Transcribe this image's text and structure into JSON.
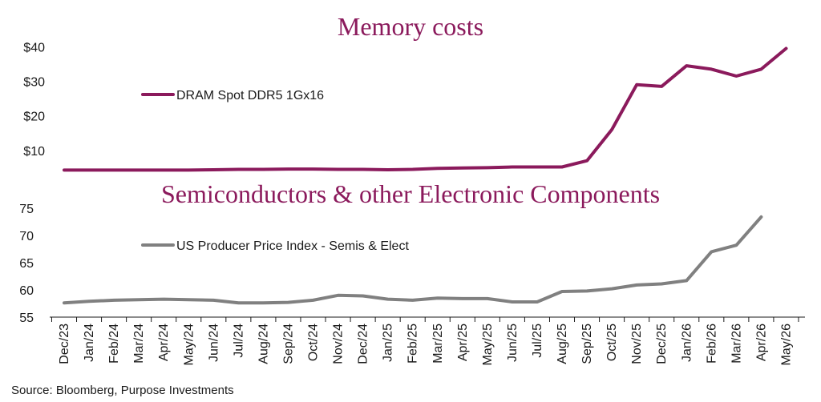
{
  "chart_data": [
    {
      "type": "line",
      "title": "Memory costs",
      "y_ticks": [
        "$40",
        "$30",
        "$20",
        "$10"
      ],
      "y_tick_values": [
        40,
        30,
        20,
        10
      ],
      "ylim": [
        3,
        41
      ],
      "grid": false,
      "legend_position": "top-left",
      "color": "#8B1A5C",
      "series": [
        {
          "name": "DRAM Spot DDR5 1Gx16",
          "values": [
            4.3,
            4.3,
            4.3,
            4.3,
            4.3,
            4.3,
            4.4,
            4.5,
            4.5,
            4.6,
            4.6,
            4.5,
            4.5,
            4.4,
            4.5,
            4.8,
            4.9,
            5.0,
            5.2,
            5.2,
            5.2,
            7.0,
            16.0,
            29.0,
            28.5,
            34.5,
            33.5,
            31.5,
            33.5,
            39.5
          ]
        }
      ]
    },
    {
      "type": "line",
      "title": "Semiconductors & other Electronic Components",
      "y_ticks": [
        "75",
        "70",
        "65",
        "60",
        "55"
      ],
      "y_tick_values": [
        75,
        70,
        65,
        60,
        55
      ],
      "ylim": [
        55,
        75
      ],
      "grid": false,
      "legend_position": "top-left",
      "color": "#808080",
      "x_labels": [
        "Dec/23",
        "Jan/24",
        "Feb/24",
        "Mar/24",
        "Apr/24",
        "May/24",
        "Jun/24",
        "Jul/24",
        "Aug/24",
        "Sep/24",
        "Oct/24",
        "Nov/24",
        "Dec/24",
        "Jan/25",
        "Feb/25",
        "Mar/25",
        "Apr/25",
        "May/25",
        "Jun/25",
        "Jul/25",
        "Aug/25",
        "Sep/25",
        "Oct/25",
        "Nov/25",
        "Dec/25",
        "Jan/26",
        "Feb/26",
        "Mar/26",
        "Apr/26",
        "May/26"
      ],
      "series": [
        {
          "name": "US Producer Price Index - Semis & Elect",
          "values": [
            57.6,
            57.9,
            58.1,
            58.2,
            58.3,
            58.2,
            58.1,
            57.6,
            57.6,
            57.7,
            58.1,
            59.0,
            58.9,
            58.3,
            58.1,
            58.5,
            58.4,
            58.4,
            57.8,
            57.8,
            59.7,
            59.8,
            60.2,
            60.9,
            61.1,
            61.7,
            67.0,
            68.2,
            73.4
          ]
        }
      ]
    }
  ],
  "source": "Source: Bloomberg, Purpose Investments"
}
